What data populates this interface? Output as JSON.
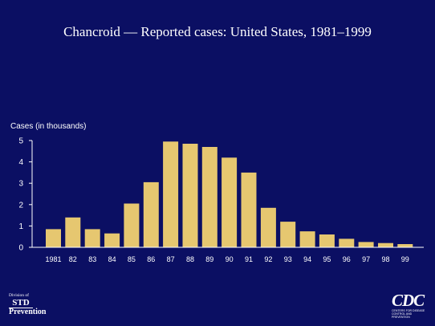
{
  "chart_data": {
    "type": "bar",
    "title": "Chancroid — Reported cases: United States, 1981–1999",
    "ylabel": "Cases (in thousands)",
    "xlabel": "",
    "categories": [
      "1981",
      "82",
      "83",
      "84",
      "85",
      "86",
      "87",
      "88",
      "89",
      "90",
      "91",
      "92",
      "93",
      "94",
      "95",
      "96",
      "97",
      "98",
      "99"
    ],
    "values": [
      0.85,
      1.4,
      0.85,
      0.65,
      2.05,
      3.05,
      4.95,
      4.85,
      4.7,
      4.2,
      3.5,
      1.85,
      1.2,
      0.75,
      0.6,
      0.4,
      0.25,
      0.2,
      0.15
    ],
    "ylim": [
      0,
      5
    ],
    "yticks": [
      "0",
      "1",
      "2",
      "3",
      "4",
      "5"
    ],
    "grid": false,
    "bar_color": "#e6c770"
  },
  "logos": {
    "std": {
      "line1": "Division of",
      "line2": "STD",
      "line3": "Prevention"
    },
    "cdc": {
      "mark": "CDC",
      "line1": "CENTERS FOR DISEASE",
      "line2": "CONTROL AND PREVENTION"
    }
  },
  "colors": {
    "background": "#0b0f63",
    "axis": "#ffffff",
    "text": "#ffffff"
  }
}
